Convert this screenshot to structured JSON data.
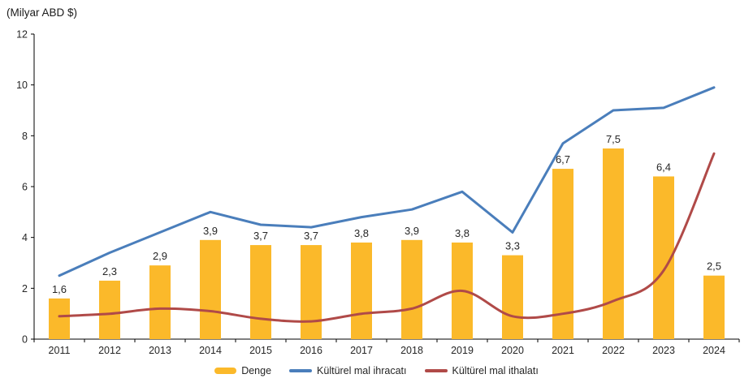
{
  "header": {
    "unit_label": "(Milyar ABD $)"
  },
  "chart_data": {
    "type": "bar",
    "subtype": "combo-bar-line",
    "title": "(Milyar ABD $)",
    "xlabel": "",
    "ylabel": "Milyar ABD $",
    "categories": [
      "2011",
      "2012",
      "2013",
      "2014",
      "2015",
      "2016",
      "2017",
      "2018",
      "2019",
      "2020",
      "2021",
      "2022",
      "2023",
      "2024"
    ],
    "series": [
      {
        "name": "Denge",
        "type": "bar",
        "color": "#FBB92A",
        "values": [
          1.6,
          2.3,
          2.9,
          3.9,
          3.7,
          3.7,
          3.8,
          3.9,
          3.8,
          3.3,
          6.7,
          7.5,
          6.4,
          2.5
        ],
        "labels": [
          "1,6",
          "2,3",
          "2,9",
          "3,9",
          "3,7",
          "3,7",
          "3,8",
          "3,9",
          "3,8",
          "3,3",
          "6,7",
          "7,5",
          "6,4",
          "2,5"
        ]
      },
      {
        "name": "Kültürel mal ihracatı",
        "type": "line",
        "smooth": false,
        "color": "#4A7EBB",
        "values": [
          2.5,
          3.4,
          4.2,
          5.0,
          4.5,
          4.4,
          4.8,
          5.1,
          5.8,
          4.2,
          7.7,
          9.0,
          9.1,
          9.9
        ]
      },
      {
        "name": "Kültürel mal ithalatı",
        "type": "line",
        "smooth": true,
        "color": "#B04A48",
        "values": [
          0.9,
          1.0,
          1.2,
          1.1,
          0.8,
          0.7,
          1.0,
          1.2,
          1.9,
          0.9,
          1.0,
          1.5,
          2.7,
          7.3
        ]
      }
    ],
    "ylim": [
      0,
      12
    ],
    "yticks": [
      0,
      2,
      4,
      6,
      8,
      10,
      12
    ],
    "ytick_labels": [
      "0",
      "2",
      "4",
      "6",
      "8",
      "10",
      "12"
    ],
    "grid": false,
    "legend_position": "bottom",
    "decimal_separator": ","
  },
  "legend": {
    "items": [
      {
        "label": "Denge",
        "swatch": "bar",
        "color": "#FBB92A"
      },
      {
        "label": "Kültürel mal ihracatı",
        "swatch": "line",
        "color": "#4A7EBB"
      },
      {
        "label": "Kültürel mal ithalatı",
        "swatch": "line",
        "color": "#B04A48"
      }
    ]
  }
}
